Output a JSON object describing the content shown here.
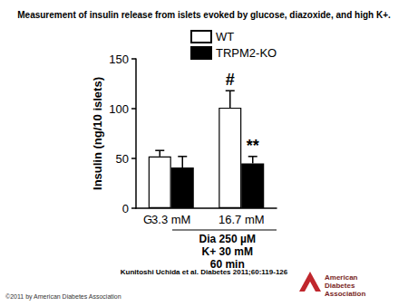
{
  "chart_data": {
    "type": "bar",
    "title": "Measurement of insulin release from islets evoked by glucose, diazoxide, and high K+.",
    "ylabel": "Insulin (ng/10 islets)",
    "xlabel": "G",
    "categories": [
      "3.3 mM",
      "16.7 mM"
    ],
    "series": [
      {
        "name": "WT",
        "color": "#ffffff",
        "values": [
          52,
          101
        ],
        "errors": [
          6,
          17
        ]
      },
      {
        "name": "TRPM2-KO",
        "color": "#000000",
        "values": [
          41,
          45
        ],
        "errors": [
          11,
          7
        ]
      }
    ],
    "ylim": [
      0,
      150
    ],
    "yticks": [
      0,
      50,
      100,
      150
    ],
    "grid": false,
    "legend": "top",
    "annotations": [
      {
        "text": "#",
        "series": "WT",
        "category": "16.7 mM"
      },
      {
        "text": "**",
        "series": "TRPM2-KO",
        "category": "16.7 mM"
      }
    ],
    "conditions": [
      "Dia 250 µM",
      "K+ 30 mM",
      "60 min"
    ],
    "source": "Kunitoshi Uchida et al. Diabetes 2011;60:119-126",
    "copyright": "©2011 by American Diabetes Association",
    "publisher": "American Diabetes Association"
  }
}
